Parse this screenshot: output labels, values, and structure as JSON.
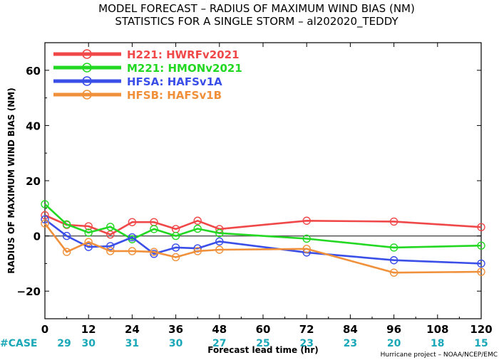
{
  "chart_data": {
    "type": "line",
    "title": "MODEL FORECAST – RADIUS OF MAXIMUM WIND BIAS (NM)",
    "subtitle": "STATISTICS FOR A SINGLE STORM – al202020_TEDDY",
    "xlabel": "Forecast lead time (hr)",
    "ylabel": "RADIUS OF MAXIMUM WIND BIAS (NM)",
    "xlim": [
      0,
      120
    ],
    "ylim": [
      -30,
      70
    ],
    "x_ticks": [
      0,
      12,
      24,
      36,
      48,
      60,
      72,
      84,
      96,
      108,
      120
    ],
    "y_ticks": [
      -20,
      0,
      20,
      40,
      60
    ],
    "y_tick_labels": [
      "−20",
      "0",
      "20",
      "40",
      "60"
    ],
    "zero_line": true,
    "grid": false,
    "legend_position": "top-left",
    "case_label": "#CASE",
    "case_counts": [
      {
        "x": 0,
        "n": "29"
      },
      {
        "x": 12,
        "n": "30"
      },
      {
        "x": 24,
        "n": "31"
      },
      {
        "x": 36,
        "n": "30"
      },
      {
        "x": 48,
        "n": "27"
      },
      {
        "x": 60,
        "n": "25"
      },
      {
        "x": 72,
        "n": "23"
      },
      {
        "x": 84,
        "n": "23"
      },
      {
        "x": 96,
        "n": "20"
      },
      {
        "x": 108,
        "n": "18"
      },
      {
        "x": 120,
        "n": "15"
      }
    ],
    "credit": "Hurricane project – NOAA/NCEP/EMC",
    "series": [
      {
        "code": "H221",
        "name": "HWRFv2021",
        "color": "#f04848",
        "points": [
          [
            0,
            7.5
          ],
          [
            6,
            4
          ],
          [
            12,
            3.5
          ],
          [
            18,
            0.5
          ],
          [
            24,
            5
          ],
          [
            30,
            5
          ],
          [
            36,
            2.5
          ],
          [
            42,
            5.5
          ],
          [
            48,
            2.5
          ],
          [
            72,
            5.5
          ],
          [
            96,
            5.2
          ],
          [
            120,
            3.2
          ]
        ]
      },
      {
        "code": "M221",
        "name": "HMONv2021",
        "color": "#22d822",
        "points": [
          [
            0,
            11.5
          ],
          [
            6,
            4.2
          ],
          [
            12,
            1.2
          ],
          [
            18,
            3.3
          ],
          [
            24,
            -1.2
          ],
          [
            30,
            2.5
          ],
          [
            36,
            0
          ],
          [
            42,
            2.6
          ],
          [
            48,
            1
          ],
          [
            72,
            -1
          ],
          [
            96,
            -4.2
          ],
          [
            120,
            -3.5
          ]
        ]
      },
      {
        "code": "HFSA",
        "name": "HAFSv1A",
        "color": "#3a4ee8",
        "points": [
          [
            0,
            6
          ],
          [
            6,
            0
          ],
          [
            12,
            -4
          ],
          [
            18,
            -3.7
          ],
          [
            24,
            -0.5
          ],
          [
            30,
            -6.5
          ],
          [
            36,
            -4.2
          ],
          [
            42,
            -4.5
          ],
          [
            48,
            -2
          ],
          [
            72,
            -6
          ],
          [
            96,
            -8.8
          ],
          [
            120,
            -10
          ]
        ]
      },
      {
        "code": "HFSB",
        "name": "HAFSv1B",
        "color": "#f0903a",
        "points": [
          [
            0,
            4.5
          ],
          [
            6,
            -5.8
          ],
          [
            12,
            -2.2
          ],
          [
            18,
            -5.5
          ],
          [
            24,
            -5.5
          ],
          [
            30,
            -5.8
          ],
          [
            36,
            -7.7
          ],
          [
            42,
            -5.5
          ],
          [
            48,
            -5
          ],
          [
            72,
            -4.7
          ],
          [
            96,
            -13.3
          ],
          [
            120,
            -13
          ]
        ]
      }
    ]
  }
}
